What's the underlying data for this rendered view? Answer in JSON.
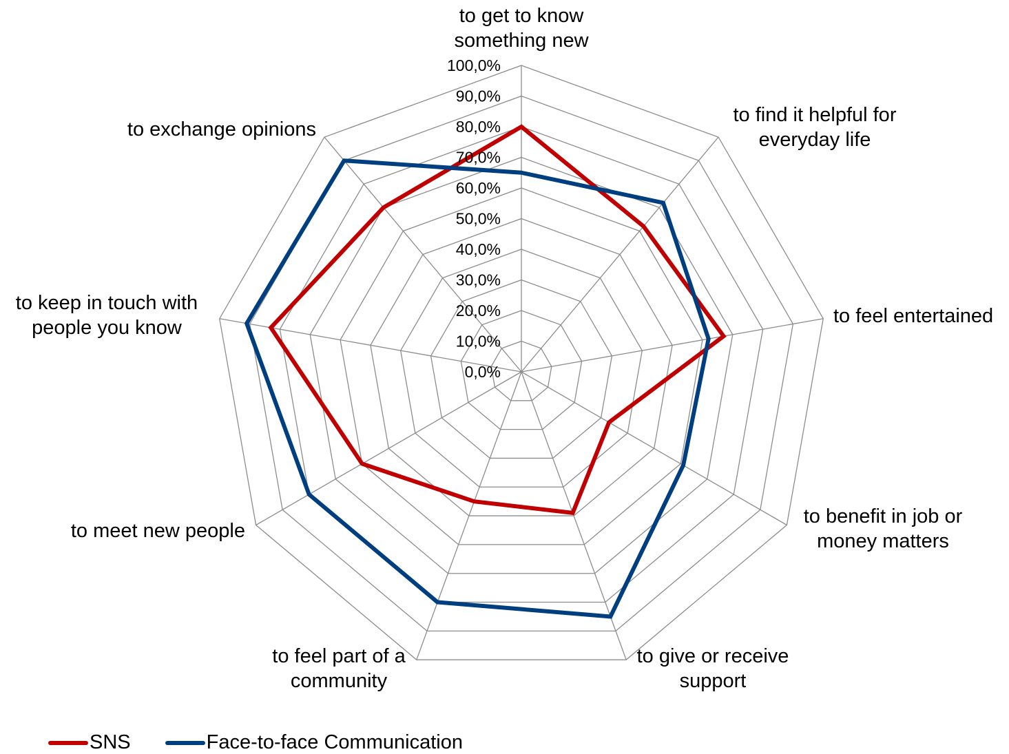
{
  "chart_data": {
    "type": "radar",
    "categories": [
      [
        "to get to know",
        "something new"
      ],
      [
        "to find it helpful for",
        "everyday life"
      ],
      [
        "to feel entertained"
      ],
      [
        "to benefit in job or",
        "money matters"
      ],
      [
        "to give or receive",
        "support"
      ],
      [
        "to feel part of a",
        "community"
      ],
      [
        "to meet new people"
      ],
      [
        "to keep in touch with",
        "people you know"
      ],
      [
        "to exchange opinions"
      ]
    ],
    "tick_labels": [
      "0,0%",
      "10,0%",
      "20,0%",
      "30,0%",
      "40,0%",
      "50,0%",
      "60,0%",
      "70,0%",
      "80,0%",
      "90,0%",
      "100,0%"
    ],
    "rlim": [
      0,
      100
    ],
    "series": [
      {
        "name": "SNS",
        "color": "#c00000",
        "values": [
          80,
          62,
          67,
          33,
          49,
          45,
          60,
          83,
          70
        ]
      },
      {
        "name": "Face-to-face Communication",
        "color": "#003f7f",
        "values": [
          65,
          72,
          62,
          61,
          85,
          80,
          80,
          91,
          90
        ]
      }
    ],
    "grid": true,
    "legend_position": "bottom-left"
  }
}
